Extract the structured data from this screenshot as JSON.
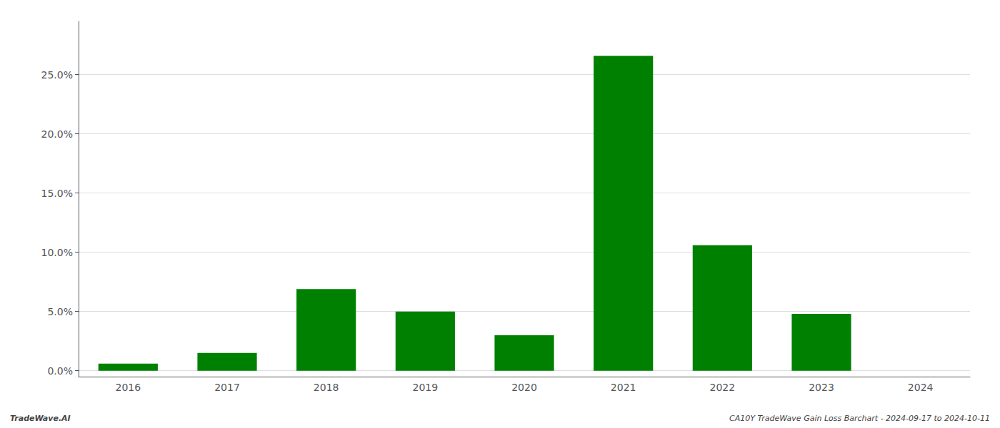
{
  "chart_data": {
    "type": "bar",
    "categories": [
      "2016",
      "2017",
      "2018",
      "2019",
      "2020",
      "2021",
      "2022",
      "2023",
      "2024"
    ],
    "values": [
      0.006,
      0.015,
      0.069,
      0.05,
      0.03,
      0.266,
      0.106,
      0.048,
      0.0
    ],
    "color": "#008000",
    "ylim": [
      -0.005,
      0.295
    ],
    "yticks": [
      {
        "value": 0.0,
        "label": "0.0%"
      },
      {
        "value": 0.05,
        "label": "5.0%"
      },
      {
        "value": 0.1,
        "label": "10.0%"
      },
      {
        "value": 0.15,
        "label": "15.0%"
      },
      {
        "value": 0.2,
        "label": "20.0%"
      },
      {
        "value": 0.25,
        "label": "25.0%"
      }
    ],
    "grid": true,
    "annotations": [
      "TradeWave.AI",
      "CA10Y TradeWave Gain Loss Barchart - 2024-09-17 to 2024-10-11"
    ]
  }
}
